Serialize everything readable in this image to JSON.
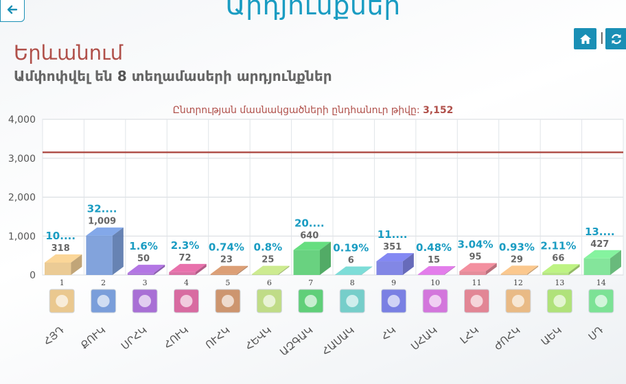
{
  "header": {
    "title": "Արդյունքներ"
  },
  "region": {
    "name": "Երևանում"
  },
  "summary": {
    "prefix": "Ամփոփվել են",
    "count": "8",
    "suffix": "տեղամասերի արդյունքներ"
  },
  "icons": {
    "back": "arrow-left-icon",
    "home": "home-icon",
    "refresh": "refresh-icon"
  },
  "voters": {
    "label": "Ընտրության մասնակցածների ընդհանուր թիվը:",
    "value": "3,152"
  },
  "chart_data": {
    "type": "bar",
    "categories": [
      "1",
      "2",
      "3",
      "4",
      "5",
      "6",
      "7",
      "8",
      "9",
      "10",
      "11",
      "12",
      "13",
      "14"
    ],
    "abbreviations": [
      "ՀՅԴ",
      "ՔՈՒԿ",
      "ՍՐՀԿ",
      "ՀՈՒԿ",
      "ՈՒՀԿ",
      "ՀԵՎԿ",
      "ԱԶԳԱԿ",
      "ՀԱՍԱԿ",
      "ՀԿ",
      "ՍՀԱԿ",
      "ԼՀԿ",
      "ԺՈՀԿ",
      "ԱԵԿ",
      "ՍԴ"
    ],
    "values": [
      318,
      1009,
      50,
      72,
      23,
      25,
      640,
      6,
      351,
      15,
      95,
      29,
      66,
      427
    ],
    "percent_labels": [
      "10....",
      "32....",
      "1.6%",
      "2.3%",
      "0.74%",
      "0.8%",
      "20....",
      "0.19%",
      "11....",
      "0.48%",
      "3.04%",
      "0.93%",
      "2.11%",
      "13...."
    ],
    "value_labels": [
      "318",
      "1,009",
      "50",
      "72",
      "23",
      "25",
      "640",
      "6",
      "351",
      "15",
      "95",
      "29",
      "66",
      "427"
    ],
    "colors": [
      "#e8c283",
      "#6c93d6",
      "#9e5fd0",
      "#d45b97",
      "#c88a5f",
      "#b9d87a",
      "#4fca6a",
      "#67c9c4",
      "#6c72e0",
      "#cf67d8",
      "#e0798a",
      "#e8b478",
      "#a9e06c",
      "#6fe08a"
    ],
    "ylim": [
      0,
      4000
    ],
    "yticks": [
      "0",
      "1,000",
      "2,000",
      "3,000",
      "4,000"
    ],
    "reference_line": 3152,
    "grid": true
  }
}
